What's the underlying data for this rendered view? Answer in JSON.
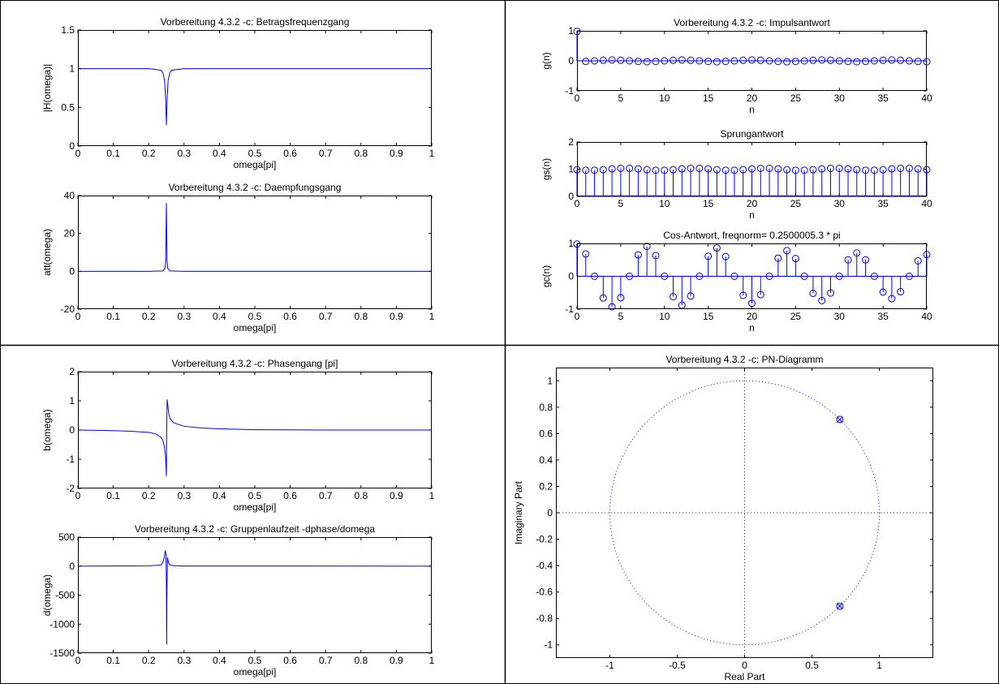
{
  "colors": {
    "line": "#0000ff",
    "axis": "#000000",
    "marker": "#0000ff"
  },
  "cells": [
    {
      "name": "cell-top-left",
      "charts": [
        {
          "key": "mag"
        },
        {
          "key": "att"
        }
      ]
    },
    {
      "name": "cell-top-right",
      "charts": [
        {
          "key": "imp"
        },
        {
          "key": "step"
        },
        {
          "key": "cos"
        }
      ]
    },
    {
      "name": "cell-bottom-left",
      "charts": [
        {
          "key": "phase"
        },
        {
          "key": "group"
        }
      ]
    },
    {
      "name": "cell-bottom-right",
      "charts": [
        {
          "key": "pn"
        }
      ]
    }
  ],
  "chart_data": [
    {
      "id": "mag",
      "type": "line",
      "title": "Vorbereitung 4.3.2 -c: Betragsfrequenzgang",
      "xlabel": "omega[pi]",
      "ylabel": "|H(omega)|",
      "xlim": [
        0,
        1
      ],
      "ylim": [
        0,
        1.5
      ],
      "xticks": [
        0,
        0.1,
        0.2,
        0.3,
        0.4,
        0.5,
        0.6,
        0.7,
        0.8,
        0.9,
        1
      ],
      "xtick_labels": [
        "0",
        "0.1",
        "0.2",
        "0.3",
        "0.4",
        "0.5",
        "0.6",
        "0.7",
        "0.8",
        "0.9",
        "1"
      ],
      "yticks": [
        0,
        0.5,
        1,
        1.5
      ],
      "ytick_labels": [
        "0",
        "0.5",
        "1",
        "1.5"
      ],
      "series": [
        {
          "x": [
            0,
            0.1,
            0.2,
            0.22,
            0.235,
            0.24,
            0.245,
            0.248,
            0.25,
            0.252,
            0.255,
            0.26,
            0.265,
            0.28,
            0.3,
            0.5,
            0.8,
            1
          ],
          "y": [
            1.0,
            1.0,
            1.0,
            0.99,
            0.98,
            0.95,
            0.85,
            0.6,
            0.27,
            0.6,
            0.85,
            0.95,
            0.98,
            0.99,
            1.0,
            1.0,
            1.0,
            1.0
          ]
        }
      ]
    },
    {
      "id": "att",
      "type": "line",
      "title": "Vorbereitung 4.3.2 -c: Daempfungsgang",
      "xlabel": "omega[pi]",
      "ylabel": "att(omega)",
      "xlim": [
        0,
        1
      ],
      "ylim": [
        -20,
        40
      ],
      "xticks": [
        0,
        0.1,
        0.2,
        0.3,
        0.4,
        0.5,
        0.6,
        0.7,
        0.8,
        0.9,
        1
      ],
      "xtick_labels": [
        "0",
        "0.1",
        "0.2",
        "0.3",
        "0.4",
        "0.5",
        "0.6",
        "0.7",
        "0.8",
        "0.9",
        "1"
      ],
      "yticks": [
        -20,
        0,
        20,
        40
      ],
      "ytick_labels": [
        "-20",
        "0",
        "20",
        "40"
      ],
      "series": [
        {
          "x": [
            0,
            0.2,
            0.24,
            0.246,
            0.248,
            0.249,
            0.25,
            0.251,
            0.252,
            0.254,
            0.26,
            0.3,
            1
          ],
          "y": [
            0,
            0,
            0.2,
            1.5,
            5,
            20,
            36,
            20,
            5,
            1.5,
            0.2,
            0,
            0
          ]
        }
      ]
    },
    {
      "id": "imp",
      "type": "stem",
      "title": "Vorbereitung 4.3.2 -c: Impulsantwort",
      "xlabel": "n",
      "ylabel": "g(n)",
      "xlim": [
        0,
        40
      ],
      "ylim": [
        -1,
        1
      ],
      "xticks": [
        0,
        5,
        10,
        15,
        20,
        25,
        30,
        35,
        40
      ],
      "xtick_labels": [
        "0",
        "5",
        "10",
        "15",
        "20",
        "25",
        "30",
        "35",
        "40"
      ],
      "yticks": [
        -1,
        0,
        1
      ],
      "ytick_labels": [
        "-1",
        "0",
        "1"
      ],
      "series": [
        {
          "x": [
            0,
            1,
            2,
            3,
            4,
            5,
            6,
            7,
            8,
            9,
            10,
            11,
            12,
            13,
            14,
            15,
            16,
            17,
            18,
            19,
            20,
            21,
            22,
            23,
            24,
            25,
            26,
            27,
            28,
            29,
            30,
            31,
            32,
            33,
            34,
            35,
            36,
            37,
            38,
            39,
            40
          ],
          "y": [
            0.98,
            -0.02,
            0,
            0.02,
            0.03,
            0.02,
            0,
            -0.02,
            -0.03,
            -0.02,
            0,
            0.02,
            0.03,
            0.02,
            0,
            -0.02,
            -0.03,
            -0.02,
            0,
            0.02,
            0.03,
            0.02,
            0,
            -0.02,
            -0.03,
            -0.02,
            0,
            0.02,
            0.03,
            0.02,
            0,
            -0.02,
            -0.03,
            -0.02,
            0,
            0.02,
            0.03,
            0.02,
            0,
            -0.02,
            -0.03
          ]
        }
      ]
    },
    {
      "id": "step",
      "type": "stem",
      "title": "Sprungantwort",
      "xlabel": "n",
      "ylabel": "gs(n)",
      "xlim": [
        0,
        40
      ],
      "ylim": [
        0,
        2
      ],
      "xticks": [
        0,
        5,
        10,
        15,
        20,
        25,
        30,
        35,
        40
      ],
      "xtick_labels": [
        "0",
        "5",
        "10",
        "15",
        "20",
        "25",
        "30",
        "35",
        "40"
      ],
      "yticks": [
        0,
        1,
        2
      ],
      "ytick_labels": [
        "0",
        "1",
        "2"
      ],
      "series": [
        {
          "x": [
            0,
            1,
            2,
            3,
            4,
            5,
            6,
            7,
            8,
            9,
            10,
            11,
            12,
            13,
            14,
            15,
            16,
            17,
            18,
            19,
            20,
            21,
            22,
            23,
            24,
            25,
            26,
            27,
            28,
            29,
            30,
            31,
            32,
            33,
            34,
            35,
            36,
            37,
            38,
            39,
            40
          ],
          "y": [
            0.98,
            0.96,
            0.96,
            0.98,
            1.01,
            1.03,
            1.03,
            1.01,
            0.98,
            0.96,
            0.96,
            0.98,
            1.01,
            1.03,
            1.03,
            1.01,
            0.98,
            0.96,
            0.96,
            0.98,
            1.01,
            1.03,
            1.03,
            1.01,
            0.98,
            0.96,
            0.96,
            0.98,
            1.01,
            1.03,
            1.03,
            1.01,
            0.98,
            0.96,
            0.96,
            0.98,
            1.01,
            1.03,
            1.03,
            1.01,
            0.98
          ]
        }
      ]
    },
    {
      "id": "cos",
      "type": "stem",
      "title": "Cos-Antwort, freqnorm= 0.2500005.3 * pi",
      "xlabel": "n",
      "ylabel": "gc(n)",
      "xlim": [
        0,
        40
      ],
      "ylim": [
        -1,
        1
      ],
      "xticks": [
        0,
        5,
        10,
        15,
        20,
        25,
        30,
        35,
        40
      ],
      "xtick_labels": [
        "0",
        "5",
        "10",
        "15",
        "20",
        "25",
        "30",
        "35",
        "40"
      ],
      "yticks": [
        -1,
        0,
        1
      ],
      "ytick_labels": [
        "-1",
        "0",
        "1"
      ],
      "series": [
        {
          "x": [
            0,
            1,
            2,
            3,
            4,
            5,
            6,
            7,
            8,
            9,
            10,
            11,
            12,
            13,
            14,
            15,
            16,
            17,
            18,
            19,
            20,
            21,
            22,
            23,
            24,
            25,
            26,
            27,
            28,
            29,
            30,
            31,
            32,
            33,
            34,
            35,
            36,
            37,
            38,
            39,
            40
          ],
          "y": [
            0.98,
            0.68,
            0,
            -0.66,
            -0.93,
            -0.65,
            0,
            0.65,
            0.91,
            0.63,
            0,
            -0.62,
            -0.88,
            -0.6,
            0,
            0.61,
            0.86,
            0.6,
            0,
            -0.58,
            -0.82,
            -0.56,
            0,
            0.55,
            0.78,
            0.54,
            0,
            -0.52,
            -0.74,
            -0.51,
            0,
            0.5,
            0.71,
            0.5,
            0,
            -0.48,
            -0.68,
            -0.47,
            0,
            0.47,
            0.66
          ]
        }
      ]
    },
    {
      "id": "phase",
      "type": "line",
      "title": "Vorbereitung 4.3.2 -c: Phasengang [pi]",
      "xlabel": "omega[pi]",
      "ylabel": "b(omega)",
      "xlim": [
        0,
        1
      ],
      "ylim": [
        -2,
        2
      ],
      "xticks": [
        0,
        0.1,
        0.2,
        0.3,
        0.4,
        0.5,
        0.6,
        0.7,
        0.8,
        0.9,
        1
      ],
      "xtick_labels": [
        "0",
        "0.1",
        "0.2",
        "0.3",
        "0.4",
        "0.5",
        "0.6",
        "0.7",
        "0.8",
        "0.9",
        "1"
      ],
      "yticks": [
        -2,
        -1,
        0,
        1,
        2
      ],
      "ytick_labels": [
        "-2",
        "-1",
        "0",
        "1",
        "2"
      ],
      "series": [
        {
          "x": [
            0,
            0.1,
            0.15,
            0.2,
            0.22,
            0.235,
            0.24,
            0.245,
            0.248,
            0.25,
            0.251,
            0.252,
            0.254,
            0.257,
            0.26,
            0.27,
            0.3,
            0.35,
            0.4,
            0.5,
            0.7,
            1
          ],
          "y": [
            0,
            -0.02,
            -0.04,
            -0.08,
            -0.13,
            -0.25,
            -0.35,
            -0.6,
            -0.95,
            -1.58,
            0,
            1.05,
            0.85,
            0.55,
            0.4,
            0.25,
            0.13,
            0.07,
            0.04,
            0.01,
            0,
            0
          ]
        }
      ]
    },
    {
      "id": "group",
      "type": "line",
      "title": "Vorbereitung 4.3.2 -c: Gruppenlaufzeit -dphase/domega",
      "xlabel": "omega[pi]",
      "ylabel": "d(omega)",
      "xlim": [
        0,
        1
      ],
      "ylim": [
        -1500,
        500
      ],
      "xticks": [
        0,
        0.1,
        0.2,
        0.3,
        0.4,
        0.5,
        0.6,
        0.7,
        0.8,
        0.9,
        1
      ],
      "xtick_labels": [
        "0",
        "0.1",
        "0.2",
        "0.3",
        "0.4",
        "0.5",
        "0.6",
        "0.7",
        "0.8",
        "0.9",
        "1"
      ],
      "yticks": [
        -1500,
        -1000,
        -500,
        0,
        500
      ],
      "ytick_labels": [
        "-1500",
        "-1000",
        "-500",
        "0",
        "500"
      ],
      "series": [
        {
          "x": [
            0,
            0.2,
            0.235,
            0.24,
            0.244,
            0.247,
            0.249,
            0.25,
            0.251,
            0.2515,
            0.253,
            0.256,
            0.26,
            0.27,
            0.3,
            1
          ],
          "y": [
            0,
            5,
            20,
            60,
            150,
            270,
            200,
            -300,
            -1350,
            -600,
            150,
            60,
            20,
            8,
            2,
            0
          ]
        }
      ]
    },
    {
      "id": "pn",
      "type": "scatter",
      "title": "Vorbereitung 4.3.2 -c: PN-Diagramm",
      "xlabel": "Real Part",
      "ylabel": "Imaginary Part",
      "xlim": [
        -1.4,
        1.4
      ],
      "ylim": [
        -1.1,
        1.1
      ],
      "xticks": [
        -1,
        -0.5,
        0,
        0.5,
        1
      ],
      "xtick_labels": [
        "-1",
        "-0.5",
        "0",
        "0.5",
        "1"
      ],
      "yticks": [
        -1,
        -0.8,
        -0.6,
        -0.4,
        -0.2,
        0,
        0.2,
        0.4,
        0.6,
        0.8,
        1
      ],
      "ytick_labels": [
        "-1",
        "-0.8",
        "-0.6",
        "-0.4",
        "-0.2",
        "0",
        "0.2",
        "0.4",
        "0.6",
        "0.8",
        "1"
      ],
      "unit_circle": true,
      "zeros": [
        [
          0.7071,
          0.7071
        ],
        [
          0.7071,
          -0.7071
        ]
      ],
      "poles": [
        [
          0.7057,
          0.7057
        ],
        [
          0.7057,
          -0.7057
        ]
      ]
    }
  ]
}
